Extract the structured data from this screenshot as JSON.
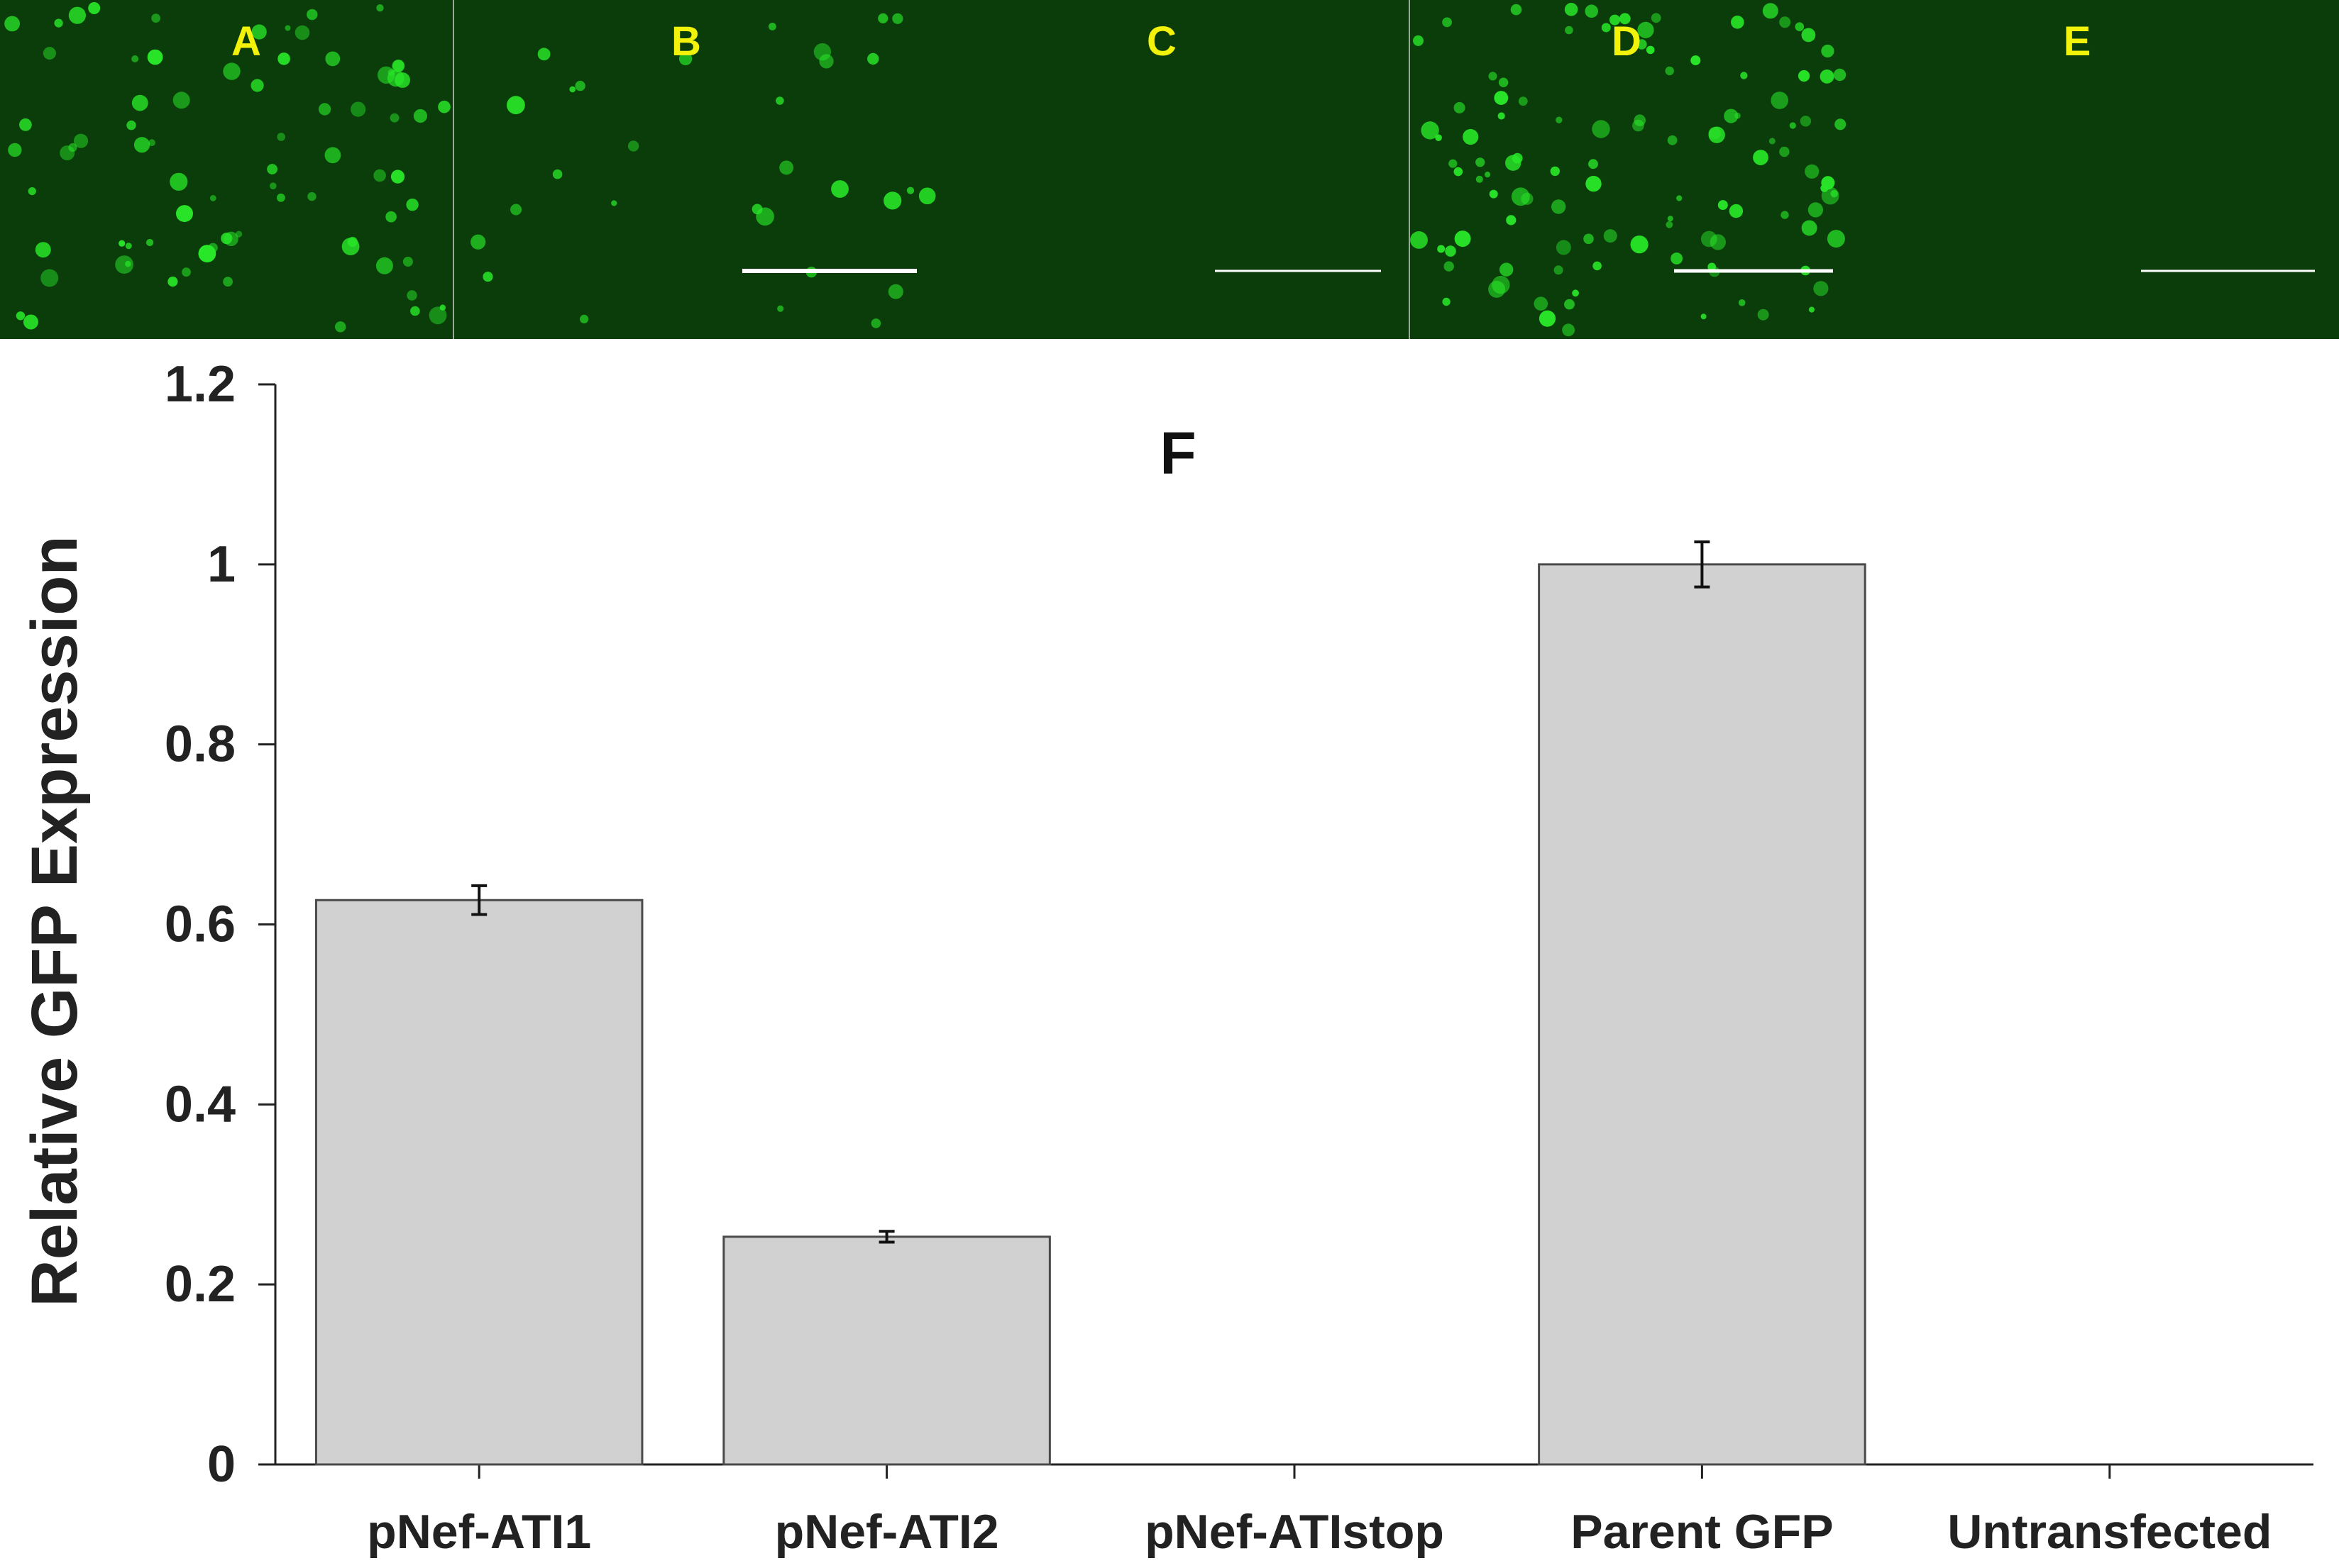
{
  "panels": [
    {
      "label": "A",
      "scale_bar": false
    },
    {
      "label": "B",
      "scale_bar": true
    },
    {
      "label": "C",
      "scale_bar": true
    },
    {
      "label": "D",
      "scale_bar": true
    },
    {
      "label": "E",
      "scale_bar": true
    }
  ],
  "colors": {
    "panel_background": "#0b3d0b",
    "cell_green": "#28e628",
    "panel_label": "#f2f20a",
    "scale_bar": "#ffffff",
    "bar_fill": "#d1d1d1",
    "bar_stroke": "#4a4a4a",
    "axis": "#222222"
  },
  "chart_data": {
    "type": "bar",
    "title": "F",
    "xlabel": "",
    "ylabel": "Relative GFP Expression",
    "categories": [
      "pNef-ATI1",
      "pNef-ATI2",
      "pNef-ATIstop",
      "Parent GFP",
      "Untransfected"
    ],
    "values": [
      0.627,
      0.253,
      0,
      1.0,
      0
    ],
    "errors": [
      0.016,
      0.006,
      0,
      0.025,
      0
    ],
    "ylim": [
      0,
      1.2
    ],
    "yticks": [
      0,
      0.2,
      0.4,
      0.6,
      0.8,
      1,
      1.2
    ],
    "ytick_labels": [
      "0",
      "0.2",
      "0.4",
      "0.6",
      "0.8",
      "1",
      "1.2"
    ],
    "grid": false,
    "legend": "none"
  }
}
